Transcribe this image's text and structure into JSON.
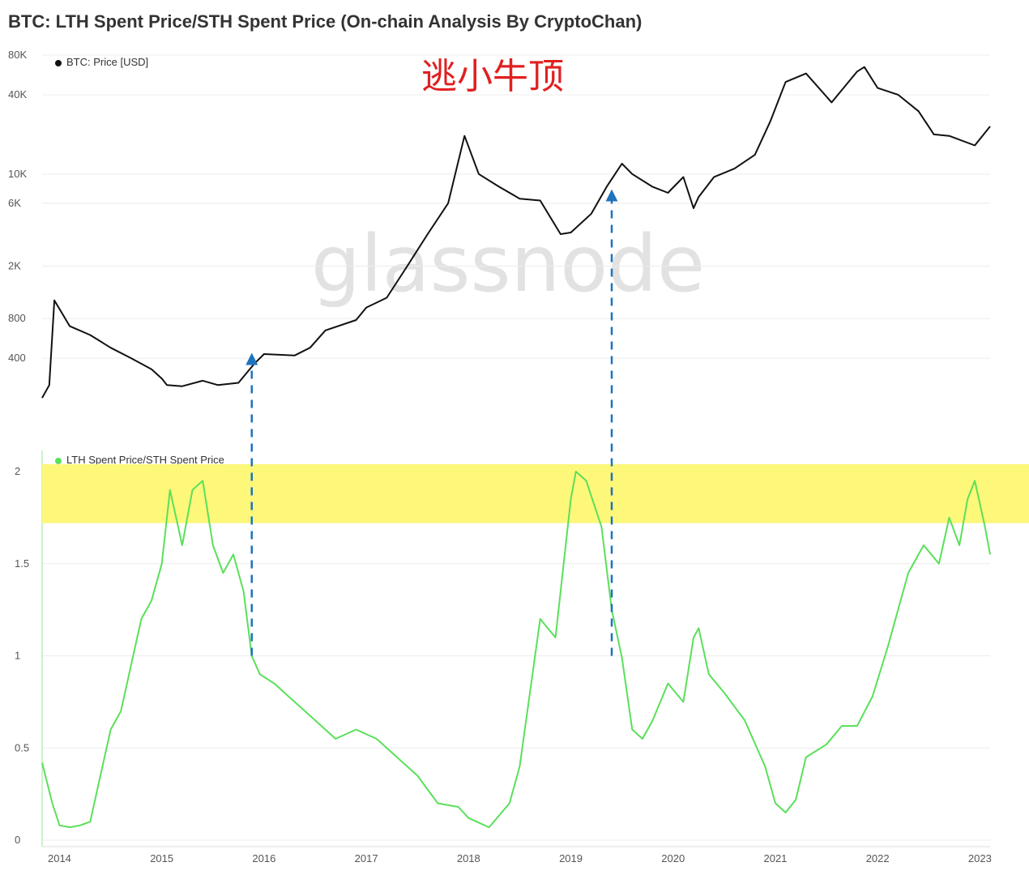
{
  "title": "BTC: LTH Spent Price/STH Spent Price (On-chain Analysis By CryptoChan)",
  "annotation": "逃小牛顶",
  "watermark": "glassnode",
  "colors": {
    "price": "#111111",
    "ratio": "#5ae05a",
    "highlight": "#fdf77a",
    "arrow": "#1e73be"
  },
  "chart_data": [
    {
      "type": "line",
      "scale": "log",
      "legend": "BTC: Price [USD]",
      "y_ticks": [
        {
          "label": "80K",
          "v": 80000
        },
        {
          "label": "40K",
          "v": 40000
        },
        {
          "label": "10K",
          "v": 10000
        },
        {
          "label": "6K",
          "v": 6000
        },
        {
          "label": "2K",
          "v": 2000
        },
        {
          "label": "800",
          "v": 800
        },
        {
          "label": "400",
          "v": 400
        }
      ],
      "series": [
        {
          "name": "BTC: Price [USD]",
          "x": [
            2013.83,
            2013.9,
            2013.95,
            2014.1,
            2014.3,
            2014.5,
            2014.7,
            2014.9,
            2015.0,
            2015.05,
            2015.2,
            2015.4,
            2015.55,
            2015.75,
            2015.9,
            2016.0,
            2016.3,
            2016.45,
            2016.6,
            2016.9,
            2017.0,
            2017.2,
            2017.4,
            2017.6,
            2017.8,
            2017.96,
            2018.1,
            2018.3,
            2018.5,
            2018.7,
            2018.9,
            2019.0,
            2019.2,
            2019.35,
            2019.5,
            2019.6,
            2019.8,
            2019.95,
            2020.1,
            2020.2,
            2020.25,
            2020.4,
            2020.6,
            2020.8,
            2020.95,
            2021.1,
            2021.3,
            2021.55,
            2021.8,
            2021.87,
            2022.0,
            2022.2,
            2022.4,
            2022.55,
            2022.7,
            2022.95,
            2023.1
          ],
          "y": [
            200,
            250,
            1100,
            700,
            600,
            480,
            400,
            330,
            280,
            250,
            245,
            270,
            250,
            260,
            360,
            430,
            420,
            480,
            650,
            780,
            970,
            1150,
            2000,
            3500,
            6000,
            19500,
            10000,
            8000,
            6500,
            6300,
            3500,
            3600,
            5000,
            8000,
            12000,
            10000,
            8000,
            7200,
            9500,
            5500,
            6700,
            9500,
            11000,
            14000,
            25000,
            50000,
            58000,
            35000,
            60000,
            65000,
            45000,
            40000,
            30000,
            20000,
            19500,
            16500,
            23000
          ]
        }
      ]
    },
    {
      "type": "line",
      "legend": "LTH Spent Price/STH Spent Price",
      "y_ticks": [
        {
          "label": "2",
          "v": 2
        },
        {
          "label": "1.5",
          "v": 1.5
        },
        {
          "label": "1",
          "v": 1
        },
        {
          "label": "0.5",
          "v": 0.5
        },
        {
          "label": "0",
          "v": 0
        }
      ],
      "x_ticks": [
        "2014",
        "2015",
        "2016",
        "2017",
        "2018",
        "2019",
        "2020",
        "2021",
        "2022",
        "2023"
      ],
      "highlight_band": [
        1.72,
        2.04
      ],
      "series": [
        {
          "name": "LTH Spent Price/STH Spent Price",
          "x": [
            2013.83,
            2013.93,
            2014.0,
            2014.1,
            2014.2,
            2014.3,
            2014.4,
            2014.5,
            2014.6,
            2014.8,
            2014.9,
            2015.0,
            2015.08,
            2015.2,
            2015.3,
            2015.4,
            2015.5,
            2015.6,
            2015.7,
            2015.8,
            2015.88,
            2015.96,
            2016.1,
            2016.3,
            2016.5,
            2016.7,
            2016.9,
            2017.1,
            2017.3,
            2017.5,
            2017.7,
            2017.9,
            2018.0,
            2018.2,
            2018.4,
            2018.5,
            2018.7,
            2018.85,
            2018.95,
            2019.0,
            2019.05,
            2019.15,
            2019.3,
            2019.4,
            2019.5,
            2019.6,
            2019.7,
            2019.8,
            2019.95,
            2020.1,
            2020.2,
            2020.25,
            2020.35,
            2020.5,
            2020.7,
            2020.9,
            2021.0,
            2021.1,
            2021.2,
            2021.3,
            2021.5,
            2021.65,
            2021.8,
            2021.95,
            2022.1,
            2022.3,
            2022.45,
            2022.6,
            2022.7,
            2022.8,
            2022.88,
            2022.95,
            2023.05,
            2023.1
          ],
          "y": [
            0.42,
            0.2,
            0.08,
            0.07,
            0.08,
            0.1,
            0.35,
            0.6,
            0.7,
            1.2,
            1.3,
            1.5,
            1.9,
            1.6,
            1.9,
            1.95,
            1.6,
            1.45,
            1.55,
            1.35,
            1.0,
            0.9,
            0.85,
            0.75,
            0.65,
            0.55,
            0.6,
            0.55,
            0.45,
            0.35,
            0.2,
            0.18,
            0.12,
            0.07,
            0.2,
            0.4,
            1.2,
            1.1,
            1.6,
            1.85,
            2.0,
            1.95,
            1.7,
            1.25,
            0.99,
            0.6,
            0.55,
            0.65,
            0.85,
            0.75,
            1.1,
            1.15,
            0.9,
            0.8,
            0.65,
            0.4,
            0.2,
            0.15,
            0.22,
            0.45,
            0.52,
            0.62,
            0.62,
            0.78,
            1.05,
            1.45,
            1.6,
            1.5,
            1.75,
            1.6,
            1.85,
            1.95,
            1.7,
            1.55
          ]
        }
      ]
    }
  ]
}
